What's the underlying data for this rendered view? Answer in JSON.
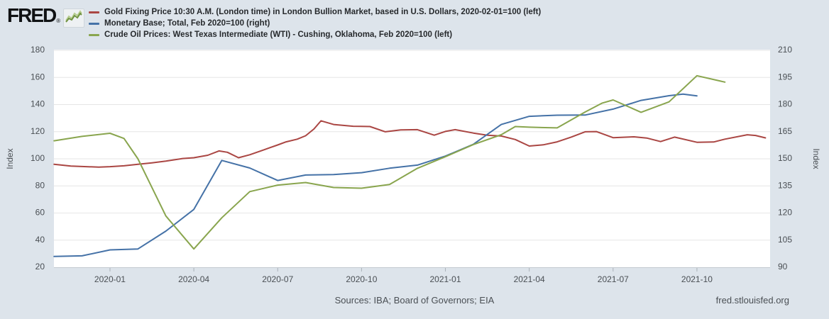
{
  "header": {
    "logo_text": "FRED",
    "logo_registered": "®"
  },
  "footer": {
    "sources": "Sources: IBA; Board of Governors; EIA",
    "site": "fred.stlouisfed.org"
  },
  "chart_data": {
    "type": "line",
    "title": "",
    "grid": true,
    "legend_position": "top",
    "x_axis": {
      "start_month": "2019-11",
      "months_per_unit": 1,
      "ticks": [
        {
          "m": 2,
          "label": "2020-01"
        },
        {
          "m": 5,
          "label": "2020-04"
        },
        {
          "m": 8,
          "label": "2020-07"
        },
        {
          "m": 11,
          "label": "2020-10"
        },
        {
          "m": 14,
          "label": "2021-01"
        },
        {
          "m": 17,
          "label": "2021-04"
        },
        {
          "m": 20,
          "label": "2021-07"
        },
        {
          "m": 23,
          "label": "2021-10"
        }
      ]
    },
    "left_axis": {
      "label": "Index",
      "min": 20,
      "max": 180,
      "step": 20
    },
    "right_axis": {
      "label": "Index",
      "min": 90,
      "max": 210,
      "step": 15
    },
    "series": [
      {
        "name": "Gold Fixing Price 10:30 A.M. (London time) in London Bullion Market, based in U.S. Dollars, 2020-02-01=100 (left)",
        "color": "#aa4643",
        "axis": "left",
        "points": [
          [
            0,
            96.0
          ],
          [
            0.6,
            94.6
          ],
          [
            1,
            94.3
          ],
          [
            1.6,
            93.9
          ],
          [
            2,
            94.2
          ],
          [
            2.5,
            94.8
          ],
          [
            3,
            96.0
          ],
          [
            3.5,
            97.0
          ],
          [
            4,
            98.3
          ],
          [
            4.6,
            100.2
          ],
          [
            5,
            100.8
          ],
          [
            5.5,
            102.6
          ],
          [
            5.9,
            105.8
          ],
          [
            6.2,
            104.8
          ],
          [
            6.6,
            100.8
          ],
          [
            7,
            103.0
          ],
          [
            7.5,
            106.6
          ],
          [
            8,
            110.2
          ],
          [
            8.3,
            112.5
          ],
          [
            8.7,
            114.5
          ],
          [
            9,
            117.0
          ],
          [
            9.3,
            122.0
          ],
          [
            9.55,
            128.0
          ],
          [
            10,
            125.3
          ],
          [
            10.7,
            124.0
          ],
          [
            11.3,
            123.8
          ],
          [
            11.85,
            119.9
          ],
          [
            12.4,
            121.3
          ],
          [
            13,
            121.5
          ],
          [
            13.6,
            117.4
          ],
          [
            14,
            120.2
          ],
          [
            14.35,
            121.5
          ],
          [
            15,
            119.0
          ],
          [
            15.5,
            117.4
          ],
          [
            16,
            116.8
          ],
          [
            16.5,
            114.2
          ],
          [
            17,
            109.4
          ],
          [
            17.5,
            110.3
          ],
          [
            18,
            112.5
          ],
          [
            18.5,
            116.0
          ],
          [
            19,
            119.9
          ],
          [
            19.4,
            120.1
          ],
          [
            20,
            115.6
          ],
          [
            20.75,
            116.2
          ],
          [
            21.2,
            115.3
          ],
          [
            21.7,
            112.7
          ],
          [
            22.2,
            116.0
          ],
          [
            23,
            112.2
          ],
          [
            23.6,
            112.4
          ],
          [
            24,
            114.5
          ],
          [
            24.8,
            117.7
          ],
          [
            25.1,
            117.2
          ],
          [
            25.45,
            115.4
          ]
        ]
      },
      {
        "name": "Monetary Base; Total, Feb 2020=100 (right)",
        "color": "#4572a7",
        "axis": "right",
        "points": [
          [
            0,
            96.0
          ],
          [
            1,
            96.3
          ],
          [
            2,
            99.6
          ],
          [
            3,
            100.1
          ],
          [
            4,
            110.0
          ],
          [
            5,
            122.0
          ],
          [
            6,
            149.1
          ],
          [
            7,
            144.9
          ],
          [
            8,
            138.0
          ],
          [
            9,
            141.0
          ],
          [
            10,
            141.3
          ],
          [
            11,
            142.3
          ],
          [
            12,
            144.8
          ],
          [
            13,
            146.5
          ],
          [
            14,
            151.5
          ],
          [
            15,
            158.0
          ],
          [
            16,
            169.0
          ],
          [
            17,
            173.5
          ],
          [
            18,
            174.1
          ],
          [
            19,
            174.2
          ],
          [
            20,
            177.5
          ],
          [
            21,
            182.3
          ],
          [
            22,
            184.9
          ],
          [
            22.5,
            185.8
          ],
          [
            23,
            184.8
          ]
        ]
      },
      {
        "name": "Crude Oil Prices: West Texas Intermediate (WTI) - Cushing, Oklahoma, Feb 2020=100 (left)",
        "color": "#89a54e",
        "axis": "left",
        "points": [
          [
            0,
            113.3
          ],
          [
            1,
            116.5
          ],
          [
            2,
            118.8
          ],
          [
            2.5,
            115.0
          ],
          [
            3,
            100.0
          ],
          [
            4,
            57.8
          ],
          [
            5,
            33.5
          ],
          [
            6,
            56.5
          ],
          [
            7,
            75.8
          ],
          [
            8,
            80.6
          ],
          [
            9,
            82.5
          ],
          [
            10,
            78.8
          ],
          [
            11,
            78.3
          ],
          [
            12,
            81.0
          ],
          [
            13,
            93.0
          ],
          [
            14,
            101.5
          ],
          [
            15,
            110.5
          ],
          [
            16,
            117.8
          ],
          [
            16.5,
            123.8
          ],
          [
            17,
            123.3
          ],
          [
            18,
            122.8
          ],
          [
            19,
            134.5
          ],
          [
            19.6,
            141.0
          ],
          [
            20,
            143.4
          ],
          [
            21,
            134.3
          ],
          [
            22,
            142.0
          ],
          [
            23,
            161.3
          ],
          [
            24,
            156.6
          ]
        ]
      }
    ]
  }
}
